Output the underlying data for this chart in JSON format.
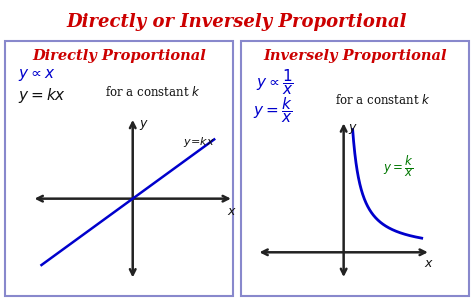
{
  "title": "Directly or Inversely Proportional",
  "title_color": "#cc0000",
  "title_fontsize": 13,
  "bg_color": "#ffffff",
  "panel_border_color": "#8888cc",
  "left_panel_title": "Directly Proportional",
  "right_panel_title": "Inversely Proportional",
  "panel_title_color": "#cc0000",
  "panel_title_fontsize": 10.5,
  "blue_color": "#0000cc",
  "green_color": "#007700",
  "black_color": "#111111",
  "graph_line_color": "#0000cc",
  "axis_color": "#222222",
  "fig_width": 4.74,
  "fig_height": 3.01,
  "dpi": 100
}
